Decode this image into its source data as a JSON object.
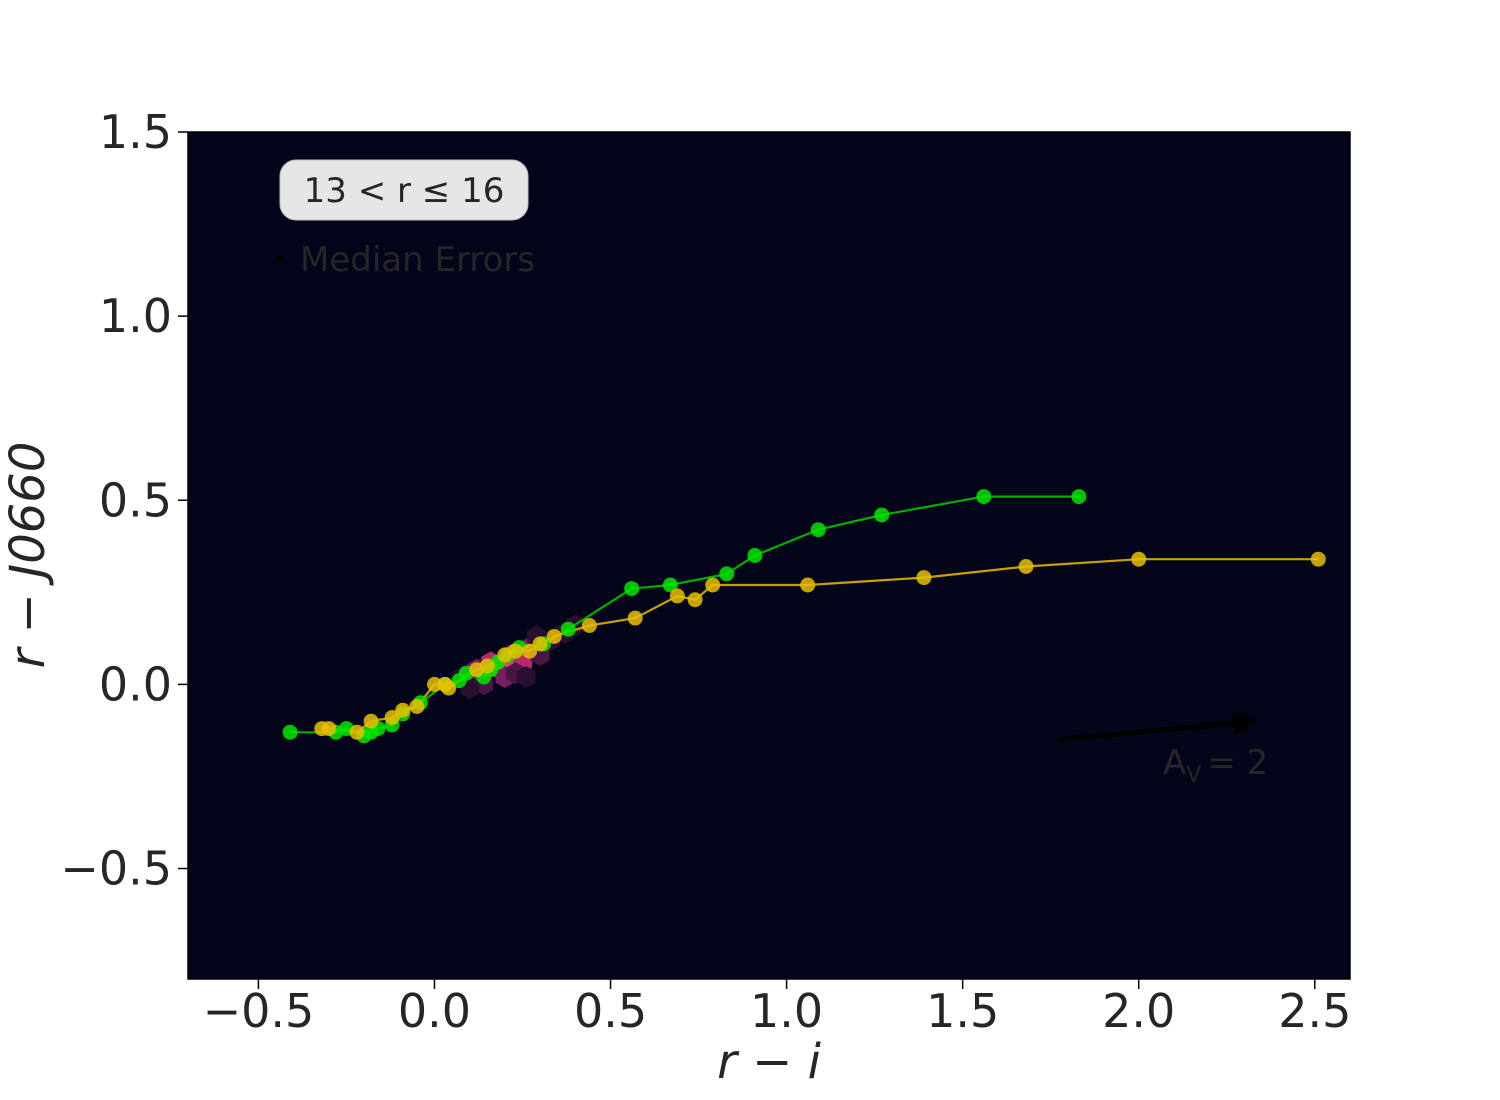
{
  "chart_data": {
    "type": "scatter",
    "title": "",
    "xlabel": "r − i",
    "ylabel": "r − J0660",
    "xlim": [
      -0.7,
      2.6
    ],
    "ylim": [
      -0.8,
      1.5
    ],
    "xticks": [
      -0.5,
      0.0,
      0.5,
      1.0,
      1.5,
      2.0,
      2.5
    ],
    "xtick_labels": [
      "−0.5",
      "0.0",
      "0.5",
      "1.0",
      "1.5",
      "2.0",
      "2.5"
    ],
    "yticks": [
      -0.5,
      0.0,
      0.5,
      1.0,
      1.5
    ],
    "ytick_labels": [
      "−0.5",
      "0.0",
      "0.5",
      "1.0",
      "1.5"
    ],
    "grid": false,
    "background_color": "#03061a",
    "annotations": {
      "magnitude_box": "13 < r  ≤  16",
      "legend_entry": "Median Errors",
      "reddening_label": "A",
      "reddening_subscript": "V",
      "reddening_value": "= 2",
      "reddening_arrow": {
        "x0": 1.77,
        "y0": -0.15,
        "x1": 2.33,
        "y1": -0.1
      }
    },
    "density_hexbin": [
      {
        "x": 0.12,
        "y": 0.04,
        "level": 0.6
      },
      {
        "x": 0.16,
        "y": 0.06,
        "level": 0.8
      },
      {
        "x": 0.19,
        "y": 0.04,
        "level": 0.95
      },
      {
        "x": 0.22,
        "y": 0.08,
        "level": 0.9
      },
      {
        "x": 0.25,
        "y": 0.06,
        "level": 0.75
      },
      {
        "x": 0.27,
        "y": 0.1,
        "level": 0.6
      },
      {
        "x": 0.2,
        "y": 0.02,
        "level": 0.7
      },
      {
        "x": 0.14,
        "y": 0.0,
        "level": 0.4
      },
      {
        "x": 0.1,
        "y": -0.01,
        "level": 0.3
      },
      {
        "x": 0.23,
        "y": 0.03,
        "level": 0.4
      },
      {
        "x": 0.3,
        "y": 0.08,
        "level": 0.35
      },
      {
        "x": 0.29,
        "y": 0.13,
        "level": 0.3
      },
      {
        "x": 0.33,
        "y": 0.12,
        "level": 0.3
      },
      {
        "x": 0.37,
        "y": 0.14,
        "level": 0.25
      },
      {
        "x": 0.4,
        "y": 0.16,
        "level": 0.2
      },
      {
        "x": 0.26,
        "y": 0.02,
        "level": 0.25
      },
      {
        "x": 0.08,
        "y": 0.02,
        "level": 0.3
      }
    ],
    "series": [
      {
        "color": "#00e600",
        "line_color": "#00b000",
        "x": [
          -0.41,
          -0.28,
          -0.25,
          -0.2,
          -0.18,
          -0.16,
          -0.12,
          -0.09,
          -0.04,
          0.03,
          0.07,
          0.09,
          0.14,
          0.16,
          0.18,
          0.21,
          0.24,
          0.31,
          0.38,
          0.56,
          0.67,
          0.83,
          0.91,
          1.09,
          1.27,
          1.56,
          1.83
        ],
        "y": [
          -0.13,
          -0.13,
          -0.12,
          -0.14,
          -0.13,
          -0.12,
          -0.11,
          -0.08,
          -0.05,
          0.0,
          0.01,
          0.03,
          0.02,
          0.04,
          0.06,
          0.08,
          0.1,
          0.11,
          0.15,
          0.26,
          0.27,
          0.3,
          0.35,
          0.42,
          0.46,
          0.51,
          0.51
        ]
      },
      {
        "color": "#e6c000",
        "line_color": "#c8a000",
        "x": [
          -0.32,
          -0.3,
          -0.22,
          -0.18,
          -0.12,
          -0.09,
          -0.05,
          0.0,
          0.03,
          0.04,
          0.12,
          0.15,
          0.2,
          0.23,
          0.27,
          0.3,
          0.34,
          0.44,
          0.57,
          0.69,
          0.74,
          0.79,
          1.06,
          1.39,
          1.68,
          2.0,
          2.51
        ],
        "y": [
          -0.12,
          -0.12,
          -0.13,
          -0.1,
          -0.09,
          -0.07,
          -0.06,
          0.0,
          0.0,
          -0.01,
          0.04,
          0.05,
          0.08,
          0.09,
          0.09,
          0.11,
          0.13,
          0.16,
          0.18,
          0.24,
          0.23,
          0.27,
          0.27,
          0.29,
          0.32,
          0.34,
          0.34
        ]
      }
    ]
  }
}
